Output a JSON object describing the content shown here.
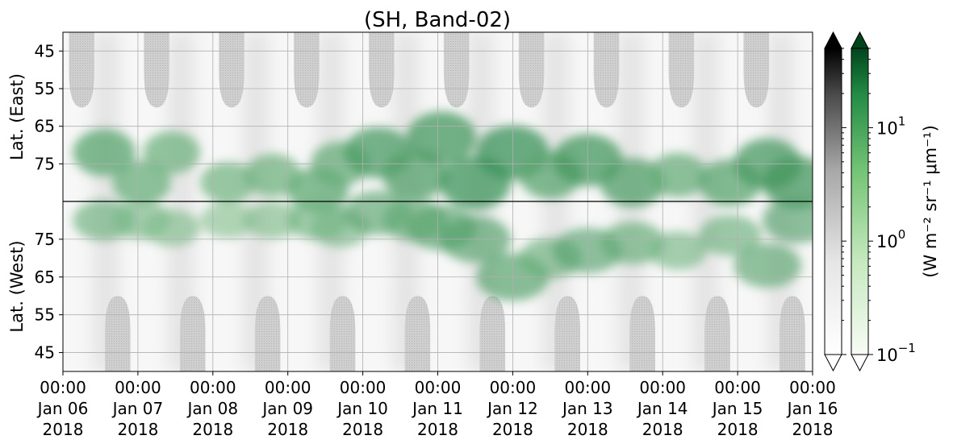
{
  "chart_data": {
    "type": "heatmap",
    "title": "(SH, Band-02)",
    "panels": [
      {
        "name": "east",
        "ylabel": "Lat. (East)",
        "yticks": [
          45,
          55,
          65,
          75
        ],
        "ylim_top": 40,
        "ylim_bottom": 85
      },
      {
        "name": "west",
        "ylabel": "Lat. (West)",
        "yticks": [
          75,
          65,
          55,
          45
        ],
        "ylim_top": 85,
        "ylim_bottom": 40
      }
    ],
    "x_ticks": [
      {
        "time": "00:00",
        "day": "Jan 06",
        "year": "2018"
      },
      {
        "time": "00:00",
        "day": "Jan 07",
        "year": "2018"
      },
      {
        "time": "00:00",
        "day": "Jan 08",
        "year": "2018"
      },
      {
        "time": "00:00",
        "day": "Jan 09",
        "year": "2018"
      },
      {
        "time": "00:00",
        "day": "Jan 10",
        "year": "2018"
      },
      {
        "time": "00:00",
        "day": "Jan 11",
        "year": "2018"
      },
      {
        "time": "00:00",
        "day": "Jan 12",
        "year": "2018"
      },
      {
        "time": "00:00",
        "day": "Jan 13",
        "year": "2018"
      },
      {
        "time": "00:00",
        "day": "Jan 14",
        "year": "2018"
      },
      {
        "time": "00:00",
        "day": "Jan 15",
        "year": "2018"
      },
      {
        "time": "00:00",
        "day": "Jan 16",
        "year": "2018"
      }
    ],
    "xlim": [
      "2018-01-06 00:00",
      "2018-01-16 00:00"
    ],
    "grid": true,
    "colorbar": {
      "scale": "log",
      "label": "(W m⁻² sr⁻¹ μm⁻¹)",
      "tick_labels": [
        {
          "base": "10",
          "exp": "−1",
          "value": 0.1
        },
        {
          "base": "10",
          "exp": "0",
          "value": 1
        },
        {
          "base": "10",
          "exp": "1",
          "value": 10
        }
      ],
      "range": [
        0.1,
        50
      ],
      "extend": "both",
      "colormaps": [
        {
          "name": "Greys",
          "from": "#f7f7f7",
          "to": "#000000"
        },
        {
          "name": "Greens",
          "from": "#f7fcf5",
          "to": "#00441b"
        }
      ]
    },
    "background_level": 0.15,
    "night_mask_value": 0.35,
    "day_mask_color": "#c8c8c8",
    "green_activity": [
      {
        "day": 0.55,
        "lat_east": 72,
        "lat_west": 80,
        "value": 3
      },
      {
        "day": 1.05,
        "lat_east": 80,
        "lat_west": 80,
        "value": 2
      },
      {
        "day": 1.45,
        "lat_east": 72,
        "lat_west": 78,
        "value": 1.5
      },
      {
        "day": 2.2,
        "lat_east": 80,
        "lat_west": 80,
        "value": 1.2
      },
      {
        "day": 2.8,
        "lat_east": 78,
        "lat_west": 80,
        "value": 1.5
      },
      {
        "day": 3.4,
        "lat_east": 82,
        "lat_west": 80,
        "value": 2.5
      },
      {
        "day": 3.7,
        "lat_east": 75,
        "lat_west": 78,
        "value": 2
      },
      {
        "day": 4.2,
        "lat_east": 72,
        "lat_west": 82,
        "value": 5
      },
      {
        "day": 4.7,
        "lat_east": 78,
        "lat_west": 80,
        "value": 4
      },
      {
        "day": 5.05,
        "lat_east": 68,
        "lat_west": 78,
        "value": 6
      },
      {
        "day": 5.5,
        "lat_east": 80,
        "lat_west": 75,
        "value": 7
      },
      {
        "day": 6.0,
        "lat_east": 72,
        "lat_west": 65,
        "value": 8
      },
      {
        "day": 6.5,
        "lat_east": 78,
        "lat_west": 70,
        "value": 3
      },
      {
        "day": 7.0,
        "lat_east": 74,
        "lat_west": 72,
        "value": 6
      },
      {
        "day": 7.6,
        "lat_east": 80,
        "lat_west": 74,
        "value": 4
      },
      {
        "day": 8.2,
        "lat_east": 78,
        "lat_west": 72,
        "value": 2
      },
      {
        "day": 8.9,
        "lat_east": 80,
        "lat_west": 76,
        "value": 3
      },
      {
        "day": 9.4,
        "lat_east": 75,
        "lat_west": 68,
        "value": 5
      },
      {
        "day": 9.8,
        "lat_east": 80,
        "lat_west": 80,
        "value": 6
      }
    ]
  }
}
